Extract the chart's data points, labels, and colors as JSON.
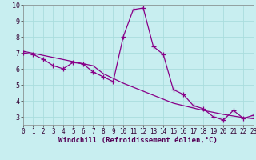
{
  "title": "",
  "xlabel": "Windchill (Refroidissement éolien,°C)",
  "ylabel": "",
  "background_color": "#c8eef0",
  "plot_bg_color": "#c8eef0",
  "line_color": "#880088",
  "grid_color": "#aadddd",
  "x_values": [
    0,
    1,
    2,
    3,
    4,
    5,
    6,
    7,
    8,
    9,
    10,
    11,
    12,
    13,
    14,
    15,
    16,
    17,
    18,
    19,
    20,
    21,
    22,
    23
  ],
  "y_actual": [
    7.0,
    6.9,
    6.6,
    6.2,
    6.0,
    6.4,
    6.3,
    5.8,
    5.5,
    5.2,
    8.0,
    9.7,
    9.8,
    7.4,
    6.9,
    4.7,
    4.4,
    3.7,
    3.5,
    3.0,
    2.8,
    3.4,
    2.9,
    3.1
  ],
  "y_trend": [
    7.1,
    6.97,
    6.84,
    6.71,
    6.58,
    6.45,
    6.32,
    6.19,
    5.7,
    5.4,
    5.1,
    4.85,
    4.6,
    4.35,
    4.1,
    3.85,
    3.7,
    3.55,
    3.4,
    3.28,
    3.15,
    3.05,
    2.95,
    2.88
  ],
  "xlim": [
    0,
    23
  ],
  "ylim": [
    2.5,
    10.0
  ],
  "yticks": [
    3,
    4,
    5,
    6,
    7,
    8,
    9,
    10
  ],
  "xticks": [
    0,
    1,
    2,
    3,
    4,
    5,
    6,
    7,
    8,
    9,
    10,
    11,
    12,
    13,
    14,
    15,
    16,
    17,
    18,
    19,
    20,
    21,
    22,
    23
  ],
  "marker": "+",
  "markersize": 4,
  "linewidth": 0.9,
  "xlabel_fontsize": 6.5,
  "tick_fontsize": 6,
  "title_fontsize": 7
}
